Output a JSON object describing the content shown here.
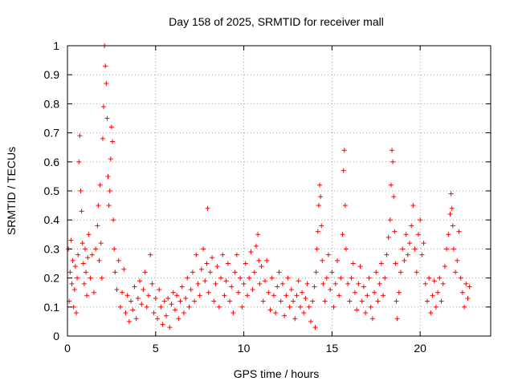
{
  "chart_data": {
    "type": "scatter",
    "title": "Day 158 of 2025, SRMTID for receiver mall",
    "xlabel": "GPS time / hours",
    "ylabel": "SRMTID / TECUs",
    "xlim": [
      0,
      24
    ],
    "ylim": [
      0,
      1
    ],
    "xticks": [
      0,
      5,
      10,
      15,
      20
    ],
    "yticks": [
      0,
      0.1,
      0.2,
      0.3,
      0.4,
      0.5,
      0.6,
      0.7,
      0.8,
      0.9,
      1
    ],
    "xtick_labels": [
      "0",
      "5",
      "10",
      "15",
      "20"
    ],
    "ytick_labels": [
      "0",
      "0.1",
      "0.2",
      "0.3",
      "0.4",
      "0.5",
      "0.6",
      "0.7",
      "0.8",
      "0.9",
      "1"
    ],
    "grid": true,
    "marker": "plus",
    "color": "#ff0000",
    "series": [
      {
        "name": "SRMTID",
        "points": [
          [
            0.05,
            0.3
          ],
          [
            0.1,
            0.12
          ],
          [
            0.15,
            0.22
          ],
          [
            0.2,
            0.33
          ],
          [
            0.25,
            0.18
          ],
          [
            0.3,
            0.26
          ],
          [
            0.35,
            0.1
          ],
          [
            0.4,
            0.16
          ],
          [
            0.45,
            0.24
          ],
          [
            0.5,
            0.08
          ],
          [
            0.55,
            0.2
          ],
          [
            0.6,
            0.28
          ],
          [
            0.65,
            0.6
          ],
          [
            0.7,
            0.69
          ],
          [
            0.75,
            0.5
          ],
          [
            0.8,
            0.43
          ],
          [
            0.85,
            0.32
          ],
          [
            0.9,
            0.25
          ],
          [
            0.95,
            0.18
          ],
          [
            1.0,
            0.3
          ],
          [
            1.05,
            0.22
          ],
          [
            1.1,
            0.14
          ],
          [
            1.15,
            0.27
          ],
          [
            1.2,
            0.35
          ],
          [
            1.3,
            0.2
          ],
          [
            1.4,
            0.28
          ],
          [
            1.5,
            0.15
          ],
          [
            1.6,
            0.3
          ],
          [
            1.7,
            0.38
          ],
          [
            1.75,
            0.45
          ],
          [
            1.8,
            0.26
          ],
          [
            1.85,
            0.52
          ],
          [
            1.9,
            0.32
          ],
          [
            1.95,
            0.2
          ],
          [
            2.0,
            0.68
          ],
          [
            2.05,
            0.79
          ],
          [
            2.1,
            1.0
          ],
          [
            2.15,
            0.93
          ],
          [
            2.2,
            0.87
          ],
          [
            2.25,
            0.75
          ],
          [
            2.3,
            0.55
          ],
          [
            2.35,
            0.45
          ],
          [
            2.4,
            0.5
          ],
          [
            2.45,
            0.61
          ],
          [
            2.5,
            0.72
          ],
          [
            2.55,
            0.67
          ],
          [
            2.6,
            0.4
          ],
          [
            2.65,
            0.3
          ],
          [
            2.7,
            0.22
          ],
          [
            2.8,
            0.16
          ],
          [
            2.9,
            0.26
          ],
          [
            3.0,
            0.1
          ],
          [
            3.1,
            0.15
          ],
          [
            3.2,
            0.23
          ],
          [
            3.3,
            0.08
          ],
          [
            3.4,
            0.14
          ],
          [
            3.5,
            0.05
          ],
          [
            3.6,
            0.12
          ],
          [
            3.7,
            0.09
          ],
          [
            3.8,
            0.17
          ],
          [
            3.9,
            0.06
          ],
          [
            4.0,
            0.13
          ],
          [
            4.1,
            0.19
          ],
          [
            4.2,
            0.11
          ],
          [
            4.3,
            0.16
          ],
          [
            4.4,
            0.22
          ],
          [
            4.5,
            0.1
          ],
          [
            4.6,
            0.14
          ],
          [
            4.7,
            0.28
          ],
          [
            4.8,
            0.18
          ],
          [
            4.9,
            0.08
          ],
          [
            5.0,
            0.13
          ],
          [
            5.1,
            0.06
          ],
          [
            5.2,
            0.16
          ],
          [
            5.3,
            0.1
          ],
          [
            5.4,
            0.04
          ],
          [
            5.5,
            0.12
          ],
          [
            5.6,
            0.07
          ],
          [
            5.7,
            0.13
          ],
          [
            5.8,
            0.03
          ],
          [
            5.9,
            0.11
          ],
          [
            6.0,
            0.15
          ],
          [
            6.1,
            0.09
          ],
          [
            6.2,
            0.14
          ],
          [
            6.3,
            0.06
          ],
          [
            6.4,
            0.12
          ],
          [
            6.5,
            0.17
          ],
          [
            6.6,
            0.08
          ],
          [
            6.7,
            0.13
          ],
          [
            6.8,
            0.2
          ],
          [
            6.9,
            0.1
          ],
          [
            7.0,
            0.16
          ],
          [
            7.1,
            0.22
          ],
          [
            7.2,
            0.12
          ],
          [
            7.3,
            0.28
          ],
          [
            7.4,
            0.18
          ],
          [
            7.5,
            0.14
          ],
          [
            7.6,
            0.23
          ],
          [
            7.7,
            0.3
          ],
          [
            7.8,
            0.19
          ],
          [
            7.9,
            0.25
          ],
          [
            7.95,
            0.44
          ],
          [
            8.0,
            0.15
          ],
          [
            8.1,
            0.22
          ],
          [
            8.2,
            0.27
          ],
          [
            8.3,
            0.12
          ],
          [
            8.4,
            0.18
          ],
          [
            8.5,
            0.24
          ],
          [
            8.6,
            0.1
          ],
          [
            8.7,
            0.2
          ],
          [
            8.8,
            0.28
          ],
          [
            8.9,
            0.14
          ],
          [
            9.0,
            0.19
          ],
          [
            9.1,
            0.25
          ],
          [
            9.2,
            0.12
          ],
          [
            9.3,
            0.17
          ],
          [
            9.4,
            0.08
          ],
          [
            9.5,
            0.22
          ],
          [
            9.6,
            0.28
          ],
          [
            9.7,
            0.15
          ],
          [
            9.8,
            0.2
          ],
          [
            9.9,
            0.1
          ],
          [
            10.0,
            0.18
          ],
          [
            10.1,
            0.25
          ],
          [
            10.2,
            0.14
          ],
          [
            10.3,
            0.2
          ],
          [
            10.4,
            0.29
          ],
          [
            10.5,
            0.16
          ],
          [
            10.6,
            0.22
          ],
          [
            10.7,
            0.31
          ],
          [
            10.8,
            0.35
          ],
          [
            10.85,
            0.26
          ],
          [
            10.9,
            0.18
          ],
          [
            11.0,
            0.24
          ],
          [
            11.1,
            0.12
          ],
          [
            11.2,
            0.19
          ],
          [
            11.3,
            0.26
          ],
          [
            11.4,
            0.15
          ],
          [
            11.5,
            0.09
          ],
          [
            11.6,
            0.2
          ],
          [
            11.7,
            0.14
          ],
          [
            11.8,
            0.08
          ],
          [
            11.9,
            0.17
          ],
          [
            12.0,
            0.22
          ],
          [
            12.1,
            0.12
          ],
          [
            12.2,
            0.18
          ],
          [
            12.3,
            0.07
          ],
          [
            12.4,
            0.14
          ],
          [
            12.5,
            0.2
          ],
          [
            12.6,
            0.1
          ],
          [
            12.7,
            0.16
          ],
          [
            12.8,
            0.12
          ],
          [
            12.9,
            0.06
          ],
          [
            13.0,
            0.14
          ],
          [
            13.1,
            0.19
          ],
          [
            13.2,
            0.1
          ],
          [
            13.3,
            0.15
          ],
          [
            13.4,
            0.08
          ],
          [
            13.5,
            0.13
          ],
          [
            13.6,
            0.18
          ],
          [
            13.7,
            0.1
          ],
          [
            13.8,
            0.05
          ],
          [
            13.9,
            0.12
          ],
          [
            14.0,
            0.17
          ],
          [
            14.05,
            0.03
          ],
          [
            14.1,
            0.22
          ],
          [
            14.15,
            0.3
          ],
          [
            14.2,
            0.36
          ],
          [
            14.25,
            0.45
          ],
          [
            14.3,
            0.52
          ],
          [
            14.35,
            0.48
          ],
          [
            14.4,
            0.38
          ],
          [
            14.45,
            0.26
          ],
          [
            14.5,
            0.18
          ],
          [
            14.6,
            0.12
          ],
          [
            14.7,
            0.2
          ],
          [
            14.8,
            0.28
          ],
          [
            14.9,
            0.16
          ],
          [
            15.0,
            0.22
          ],
          [
            15.1,
            0.1
          ],
          [
            15.2,
            0.18
          ],
          [
            15.3,
            0.26
          ],
          [
            15.4,
            0.14
          ],
          [
            15.5,
            0.2
          ],
          [
            15.6,
            0.35
          ],
          [
            15.65,
            0.57
          ],
          [
            15.7,
            0.64
          ],
          [
            15.75,
            0.45
          ],
          [
            15.8,
            0.3
          ],
          [
            15.9,
            0.18
          ],
          [
            16.0,
            0.12
          ],
          [
            16.1,
            0.2
          ],
          [
            16.2,
            0.25
          ],
          [
            16.3,
            0.15
          ],
          [
            16.4,
            0.09
          ],
          [
            16.5,
            0.18
          ],
          [
            16.6,
            0.24
          ],
          [
            16.7,
            0.12
          ],
          [
            16.8,
            0.17
          ],
          [
            16.9,
            0.08
          ],
          [
            17.0,
            0.14
          ],
          [
            17.1,
            0.2
          ],
          [
            17.2,
            0.1
          ],
          [
            17.3,
            0.06
          ],
          [
            17.4,
            0.15
          ],
          [
            17.5,
            0.22
          ],
          [
            17.6,
            0.12
          ],
          [
            17.7,
            0.18
          ],
          [
            17.8,
            0.25
          ],
          [
            17.9,
            0.14
          ],
          [
            18.0,
            0.2
          ],
          [
            18.1,
            0.28
          ],
          [
            18.2,
            0.34
          ],
          [
            18.3,
            0.4
          ],
          [
            18.35,
            0.52
          ],
          [
            18.4,
            0.64
          ],
          [
            18.45,
            0.6
          ],
          [
            18.5,
            0.48
          ],
          [
            18.55,
            0.36
          ],
          [
            18.6,
            0.25
          ],
          [
            18.65,
            0.12
          ],
          [
            18.7,
            0.06
          ],
          [
            18.8,
            0.15
          ],
          [
            18.9,
            0.22
          ],
          [
            19.0,
            0.3
          ],
          [
            19.1,
            0.26
          ],
          [
            19.2,
            0.35
          ],
          [
            19.3,
            0.28
          ],
          [
            19.4,
            0.32
          ],
          [
            19.5,
            0.38
          ],
          [
            19.6,
            0.45
          ],
          [
            19.7,
            0.3
          ],
          [
            19.8,
            0.22
          ],
          [
            19.9,
            0.35
          ],
          [
            20.0,
            0.4
          ],
          [
            20.1,
            0.28
          ],
          [
            20.2,
            0.32
          ],
          [
            20.3,
            0.18
          ],
          [
            20.4,
            0.12
          ],
          [
            20.5,
            0.2
          ],
          [
            20.6,
            0.08
          ],
          [
            20.7,
            0.14
          ],
          [
            20.8,
            0.19
          ],
          [
            20.9,
            0.1
          ],
          [
            21.0,
            0.15
          ],
          [
            21.1,
            0.2
          ],
          [
            21.2,
            0.12
          ],
          [
            21.3,
            0.18
          ],
          [
            21.4,
            0.24
          ],
          [
            21.5,
            0.3
          ],
          [
            21.6,
            0.35
          ],
          [
            21.7,
            0.42
          ],
          [
            21.75,
            0.49
          ],
          [
            21.8,
            0.44
          ],
          [
            21.85,
            0.38
          ],
          [
            21.9,
            0.3
          ],
          [
            22.0,
            0.22
          ],
          [
            22.1,
            0.26
          ],
          [
            22.2,
            0.36
          ],
          [
            22.3,
            0.2
          ],
          [
            22.4,
            0.15
          ],
          [
            22.5,
            0.1
          ],
          [
            22.6,
            0.18
          ],
          [
            22.7,
            0.13
          ],
          [
            22.8,
            0.17
          ]
        ]
      }
    ]
  }
}
